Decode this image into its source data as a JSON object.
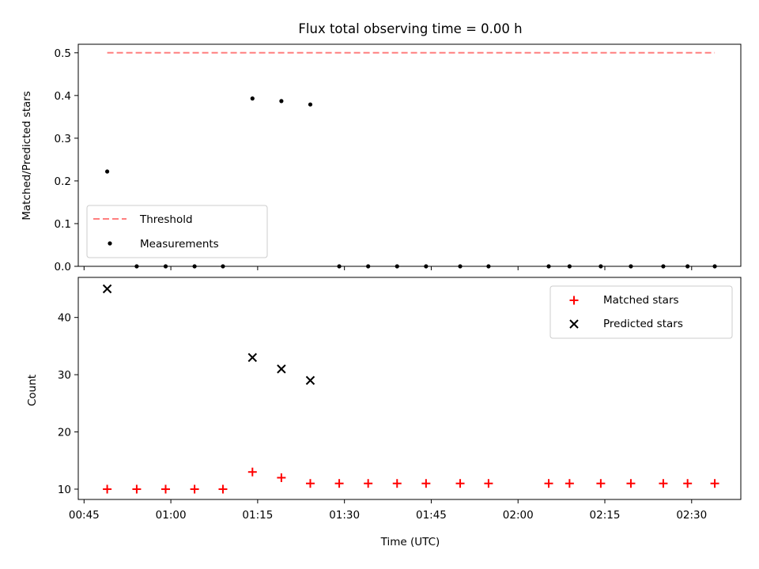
{
  "chart_data": {
    "type": "scatter",
    "title": "Flux total observing time = 0.00 h",
    "xlabel": "Time (UTC)",
    "x_ticks": [
      {
        "t": 45,
        "label": "00:45"
      },
      {
        "t": 60,
        "label": "01:00"
      },
      {
        "t": 75,
        "label": "01:15"
      },
      {
        "t": 90,
        "label": "01:30"
      },
      {
        "t": 105,
        "label": "01:45"
      },
      {
        "t": 120,
        "label": "02:00"
      },
      {
        "t": 135,
        "label": "02:15"
      },
      {
        "t": 150,
        "label": "02:30"
      }
    ],
    "xlim": [
      44.0,
      158.5
    ],
    "top": {
      "ylabel": "Matched/Predicted stars",
      "ylim": [
        0.0,
        0.52
      ],
      "y_ticks": [
        {
          "v": 0.0,
          "label": "0.0"
        },
        {
          "v": 0.1,
          "label": "0.1"
        },
        {
          "v": 0.2,
          "label": "0.2"
        },
        {
          "v": 0.3,
          "label": "0.3"
        },
        {
          "v": 0.4,
          "label": "0.4"
        },
        {
          "v": 0.5,
          "label": "0.5"
        }
      ],
      "threshold": {
        "name": "Threshold",
        "value": 0.5,
        "x_range": [
          49.0,
          154.0
        ],
        "color": "#ff7f7f"
      },
      "measurements": {
        "name": "Measurements",
        "color": "#000000",
        "x": [
          49.0,
          54.1,
          59.1,
          64.1,
          69.0,
          74.1,
          79.1,
          84.1,
          89.1,
          94.1,
          99.1,
          104.1,
          110.0,
          114.9,
          125.3,
          128.9,
          134.3,
          139.5,
          145.1,
          149.3,
          154.0
        ],
        "y": [
          0.222,
          0.0,
          0.0,
          0.0,
          0.0,
          0.393,
          0.387,
          0.379,
          0.0,
          0.0,
          0.0,
          0.0,
          0.0,
          0.0,
          0.0,
          0.0,
          0.0,
          0.0,
          0.0,
          0.0,
          0.0
        ]
      },
      "legend_position": "lower-left"
    },
    "bottom": {
      "ylabel": "Count",
      "ylim": [
        8.2,
        47.0
      ],
      "y_ticks": [
        {
          "v": 10,
          "label": "10"
        },
        {
          "v": 20,
          "label": "20"
        },
        {
          "v": 30,
          "label": "30"
        },
        {
          "v": 40,
          "label": "40"
        }
      ],
      "series": [
        {
          "name": "Matched stars",
          "marker": "+",
          "color": "#ff0000",
          "x": [
            49.0,
            54.1,
            59.1,
            64.1,
            69.0,
            74.1,
            79.1,
            84.1,
            89.1,
            94.1,
            99.1,
            104.1,
            110.0,
            114.9,
            125.3,
            128.9,
            134.3,
            139.5,
            145.1,
            149.3,
            154.0
          ],
          "y": [
            10,
            10,
            10,
            10,
            10,
            13,
            12,
            11,
            11,
            11,
            11,
            11,
            11,
            11,
            11,
            11,
            11,
            11,
            11,
            11,
            11
          ]
        },
        {
          "name": "Predicted stars",
          "marker": "x",
          "color": "#000000",
          "x": [
            49.0,
            74.1,
            79.1,
            84.1
          ],
          "y": [
            45,
            33,
            31,
            29
          ]
        }
      ],
      "legend_position": "top-right"
    }
  }
}
